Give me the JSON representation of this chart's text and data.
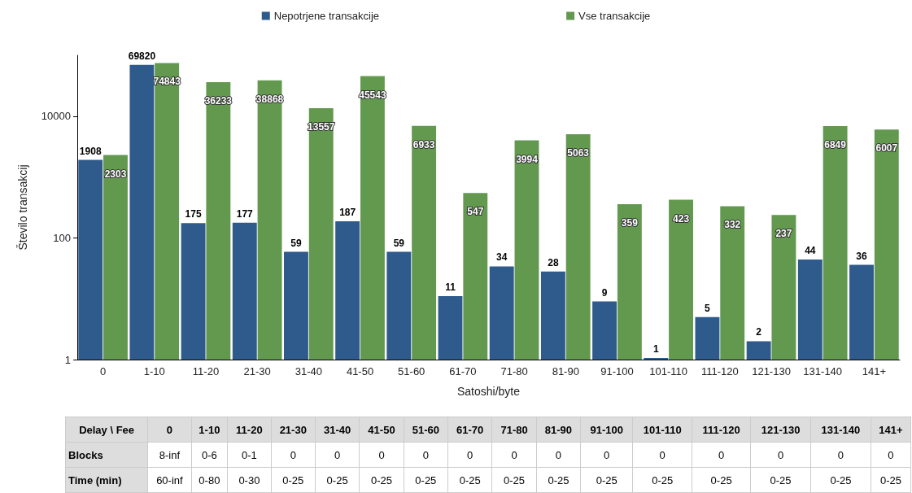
{
  "chart_data": [
    {
      "type": "bar",
      "xlabel": "Satoshi/byte",
      "ylabel": "Število transakcij",
      "categories": [
        "0",
        "1-10",
        "11-20",
        "21-30",
        "31-40",
        "41-50",
        "51-60",
        "61-70",
        "71-80",
        "81-90",
        "91-100",
        "101-110",
        "111-120",
        "121-130",
        "131-140",
        "141+"
      ],
      "series": [
        {
          "name": "Nepotrjene transakcije",
          "color": "#2e5a8c",
          "values": [
            1908,
            69820,
            175,
            177,
            59,
            187,
            59,
            11,
            34,
            28,
            9,
            1,
            5,
            2,
            44,
            36
          ]
        },
        {
          "name": "Vse transakcije",
          "color": "#62994f",
          "values": [
            2303,
            74843,
            36233,
            38868,
            13557,
            45543,
            6933,
            547,
            3994,
            5063,
            359,
            423,
            332,
            237,
            6849,
            6007
          ]
        }
      ],
      "log": "y",
      "ylim": [
        1,
        100000
      ],
      "yticks": [
        1,
        100,
        10000
      ],
      "grid": false,
      "legend": "top",
      "data_labels": true
    },
    {
      "type": "heatmap",
      "ylabel": "Delay \\ Fee",
      "categories": [
        "0",
        "1-10",
        "11-20",
        "21-30",
        "31-40",
        "41-50",
        "51-60",
        "61-70",
        "71-80",
        "81-90",
        "91-100",
        "101-110",
        "111-120",
        "121-130",
        "131-140",
        "141+"
      ],
      "y_categories": [
        "Blocks",
        "Time (min)"
      ],
      "cells": [
        [
          null,
          null,
          null,
          null,
          null,
          null,
          null,
          null,
          null,
          null,
          null,
          null,
          null,
          null,
          null,
          null
        ],
        [
          null,
          null,
          null,
          null,
          null,
          null,
          null,
          null,
          null,
          null,
          null,
          null,
          null,
          null,
          null,
          null
        ]
      ],
      "cell_labels": [
        [
          "8-inf",
          "0-6",
          "0-1",
          "0",
          "0",
          "0",
          "0",
          "0",
          "0",
          "0",
          "0",
          "0",
          "0",
          "0",
          "0",
          "0"
        ],
        [
          "60-inf",
          "0-80",
          "0-30",
          "0-25",
          "0-25",
          "0-25",
          "0-25",
          "0-25",
          "0-25",
          "0-25",
          "0-25",
          "0-25",
          "0-25",
          "0-25",
          "0-25",
          "0-25"
        ]
      ]
    }
  ]
}
